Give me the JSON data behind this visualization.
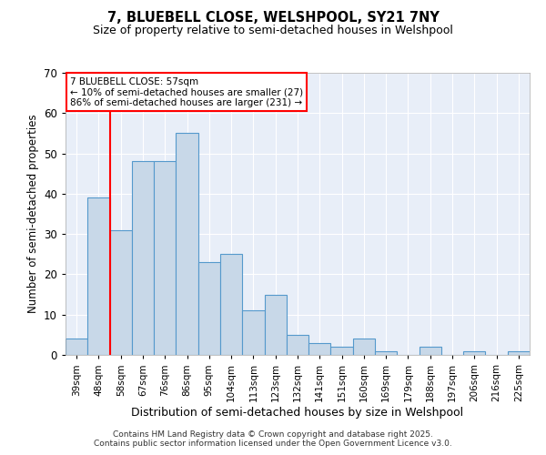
{
  "title1": "7, BLUEBELL CLOSE, WELSHPOOL, SY21 7NY",
  "title2": "Size of property relative to semi-detached houses in Welshpool",
  "xlabel": "Distribution of semi-detached houses by size in Welshpool",
  "ylabel": "Number of semi-detached properties",
  "categories": [
    "39sqm",
    "48sqm",
    "58sqm",
    "67sqm",
    "76sqm",
    "86sqm",
    "95sqm",
    "104sqm",
    "113sqm",
    "123sqm",
    "132sqm",
    "141sqm",
    "151sqm",
    "160sqm",
    "169sqm",
    "179sqm",
    "188sqm",
    "197sqm",
    "206sqm",
    "216sqm",
    "225sqm"
  ],
  "values": [
    4,
    39,
    31,
    48,
    48,
    55,
    23,
    25,
    11,
    15,
    5,
    3,
    2,
    4,
    1,
    0,
    2,
    0,
    1,
    0,
    1
  ],
  "bar_color": "#c8d8e8",
  "bar_edge_color": "#5599cc",
  "red_line_index": 2,
  "annotation_title": "7 BLUEBELL CLOSE: 57sqm",
  "annotation_line1": "← 10% of semi-detached houses are smaller (27)",
  "annotation_line2": "86% of semi-detached houses are larger (231) →",
  "ylim": [
    0,
    70
  ],
  "yticks": [
    0,
    10,
    20,
    30,
    40,
    50,
    60,
    70
  ],
  "bg_color": "#e8eef8",
  "footer1": "Contains HM Land Registry data © Crown copyright and database right 2025.",
  "footer2": "Contains public sector information licensed under the Open Government Licence v3.0."
}
